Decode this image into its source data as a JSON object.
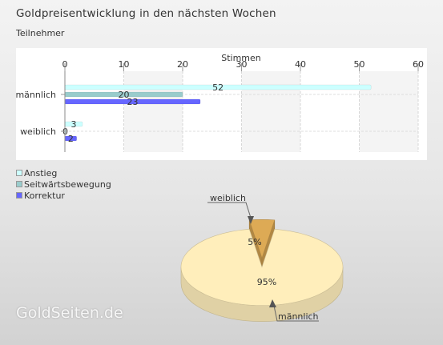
{
  "title": "Goldpreisentwicklung in den nächsten Wochen",
  "subtitle": "Teilnehmer",
  "watermark": "GoldSeiten.de",
  "chart_data": [
    {
      "type": "bar",
      "orientation": "horizontal",
      "xlabel": "Stimmen",
      "xlim": [
        0,
        60
      ],
      "xticks": [
        0,
        10,
        20,
        30,
        40,
        50,
        60
      ],
      "categories": [
        "männlich",
        "weiblich"
      ],
      "series": [
        {
          "name": "Anstieg",
          "values": [
            52,
            3
          ],
          "color": "#ccffff"
        },
        {
          "name": "Seitwärtsbewegung",
          "values": [
            20,
            0
          ],
          "color": "#99cccc"
        },
        {
          "name": "Korrektur",
          "values": [
            23,
            2
          ],
          "color": "#6666ff"
        }
      ],
      "legend": "below-left",
      "grid": true
    },
    {
      "type": "pie",
      "style": "3d",
      "labels": [
        "männlich",
        "weiblich"
      ],
      "values": [
        95,
        5
      ],
      "value_labels": [
        "95%",
        "5%"
      ],
      "colors": [
        "#ffeebb",
        "#ddaa55"
      ]
    }
  ]
}
